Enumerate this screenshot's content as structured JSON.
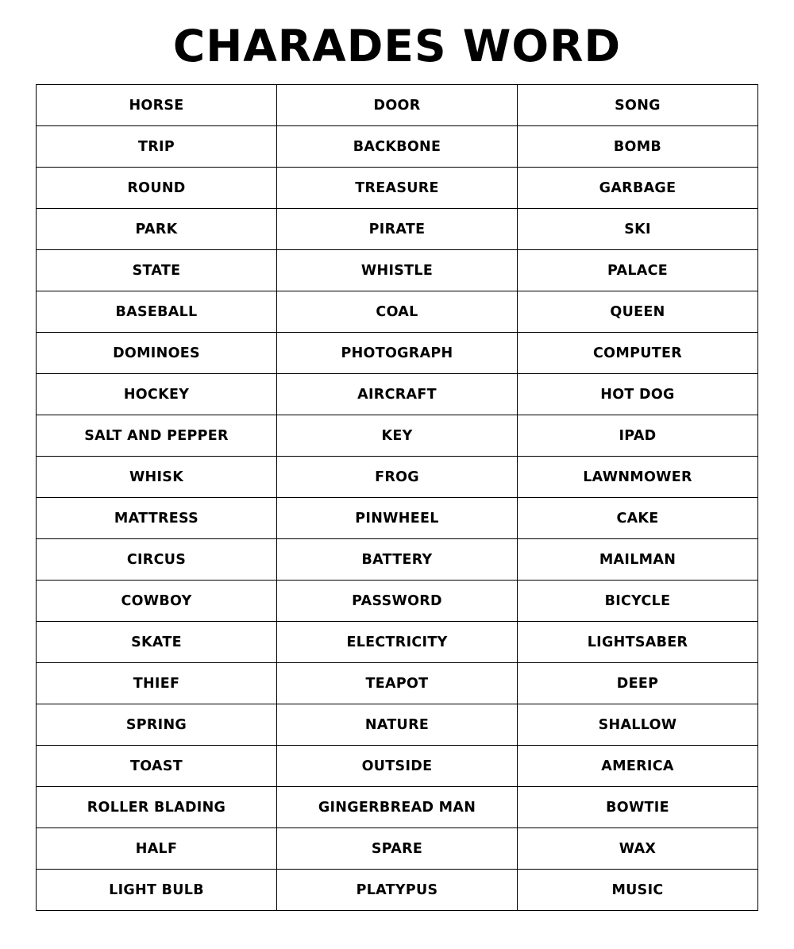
{
  "title": "CHARADES WORD",
  "rows": [
    [
      "HORSE",
      "DOOR",
      "SONG"
    ],
    [
      "TRIP",
      "BACKBONE",
      "BOMB"
    ],
    [
      "ROUND",
      "TREASURE",
      "GARBAGE"
    ],
    [
      "PARK",
      "PIRATE",
      "SKI"
    ],
    [
      "STATE",
      "WHISTLE",
      "PALACE"
    ],
    [
      "BASEBALL",
      "COAL",
      "QUEEN"
    ],
    [
      "DOMINOES",
      "PHOTOGRAPH",
      "COMPUTER"
    ],
    [
      "HOCKEY",
      "AIRCRAFT",
      "HOT DOG"
    ],
    [
      "SALT AND PEPPER",
      "KEY",
      "IPAD"
    ],
    [
      "WHISK",
      "FROG",
      "LAWNMOWER"
    ],
    [
      "MATTRESS",
      "PINWHEEL",
      "CAKE"
    ],
    [
      "CIRCUS",
      "BATTERY",
      "MAILMAN"
    ],
    [
      "COWBOY",
      "PASSWORD",
      "BICYCLE"
    ],
    [
      "SKATE",
      "ELECTRICITY",
      "LIGHTSABER"
    ],
    [
      "THIEF",
      "TEAPOT",
      "DEEP"
    ],
    [
      "SPRING",
      "NATURE",
      "SHALLOW"
    ],
    [
      "TOAST",
      "OUTSIDE",
      "AMERICA"
    ],
    [
      "ROLLER BLADING",
      "GINGERBREAD MAN",
      "BOWTIE"
    ],
    [
      "HALF",
      "SPARE",
      "WAX"
    ],
    [
      "LIGHT BULB",
      "PLATYPUS",
      "MUSIC"
    ]
  ]
}
